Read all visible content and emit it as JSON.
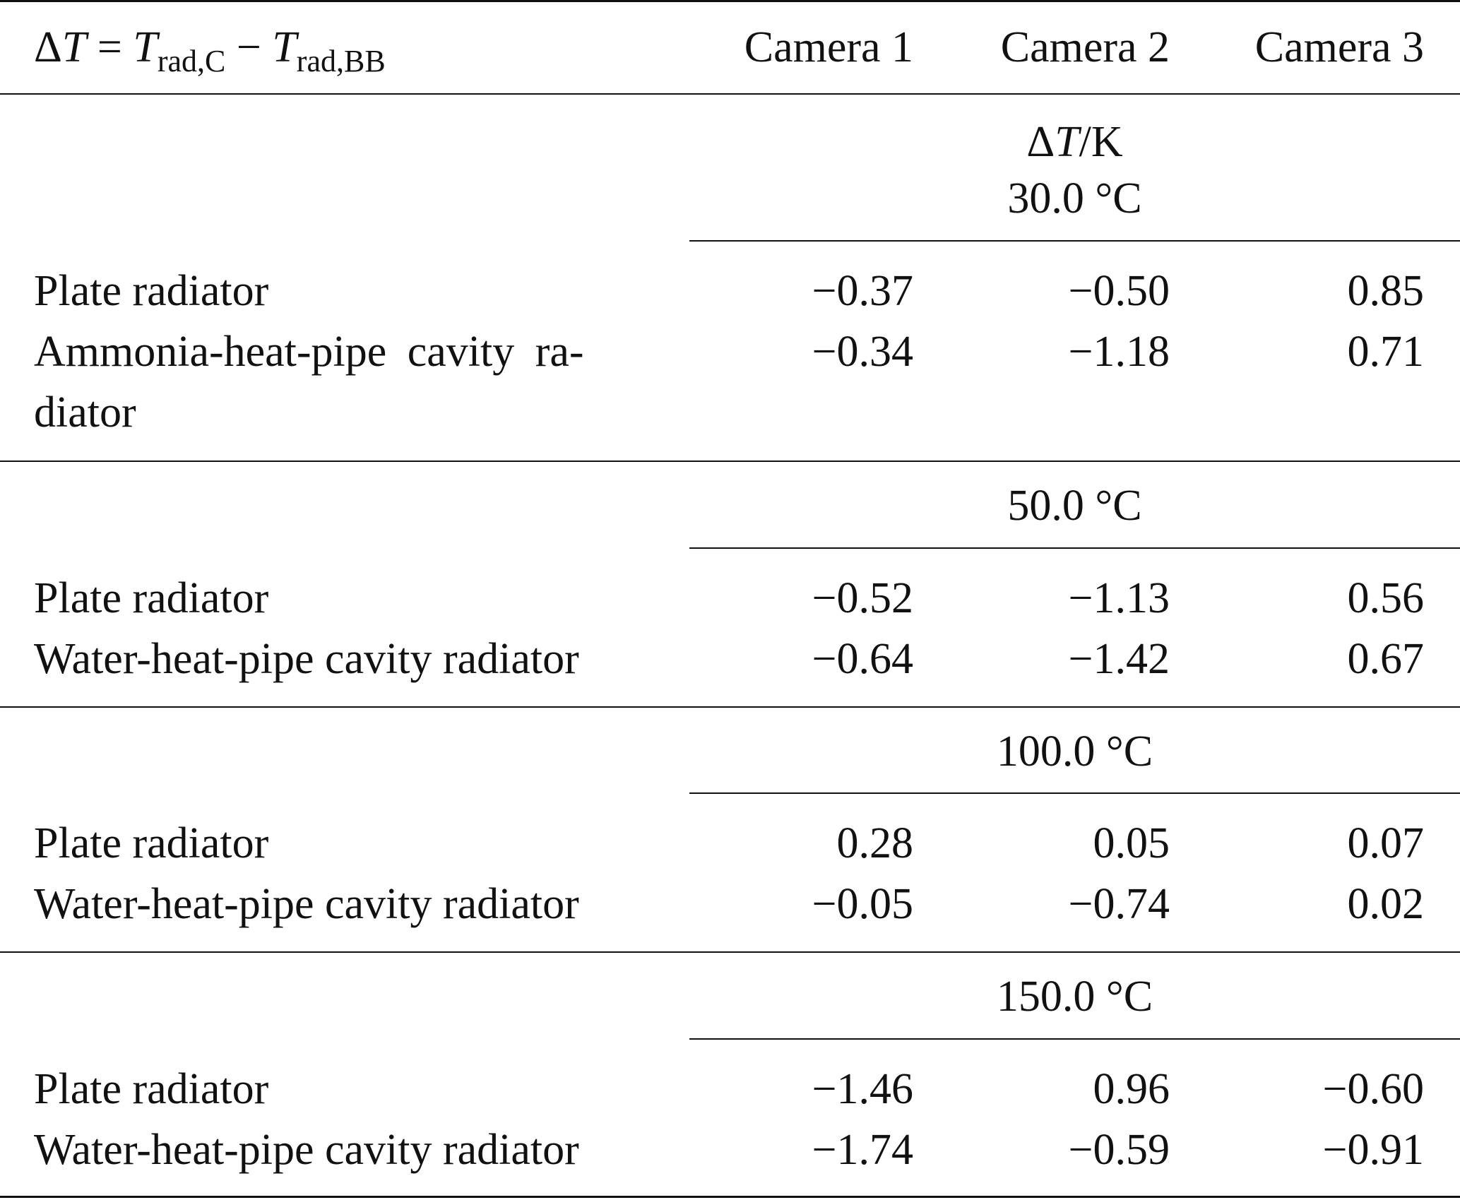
{
  "header": {
    "formula": {
      "delta": "Δ",
      "t1": "T",
      "eq": " = ",
      "t2": "T",
      "sub2": "rad,C",
      "minus": " − ",
      "t3": "T",
      "sub3": "rad,BB"
    },
    "columns": [
      "Camera 1",
      "Camera 2",
      "Camera 3"
    ]
  },
  "units_label": {
    "delta": "Δ",
    "t": "T",
    "rest": "/K"
  },
  "groups": [
    {
      "temperature": "30.0 °C",
      "rows": [
        {
          "label": "Plate radiator",
          "values": [
            "−0.37",
            "−0.50",
            "0.85"
          ]
        },
        {
          "label_line1": "Ammonia-heat-pipe  cavity  ra-",
          "label_line2": "diator",
          "values": [
            "−0.34",
            "−1.18",
            "0.71"
          ]
        }
      ]
    },
    {
      "temperature": "50.0 °C",
      "rows": [
        {
          "label": "Plate radiator",
          "values": [
            "−0.52",
            "−1.13",
            "0.56"
          ]
        },
        {
          "label": "Water-heat-pipe cavity radiator",
          "values": [
            "−0.64",
            "−1.42",
            "0.67"
          ]
        }
      ]
    },
    {
      "temperature": "100.0 °C",
      "rows": [
        {
          "label": "Plate radiator",
          "values": [
            "0.28",
            "0.05",
            "0.07"
          ]
        },
        {
          "label": "Water-heat-pipe cavity radiator",
          "values": [
            "−0.05",
            "−0.74",
            "0.02"
          ]
        }
      ]
    },
    {
      "temperature": "150.0 °C",
      "rows": [
        {
          "label": "Plate radiator",
          "values": [
            "−1.46",
            "0.96",
            "−0.60"
          ]
        },
        {
          "label": "Water-heat-pipe cavity radiator",
          "values": [
            "−1.74",
            "−0.59",
            "−0.91"
          ]
        }
      ]
    }
  ]
}
